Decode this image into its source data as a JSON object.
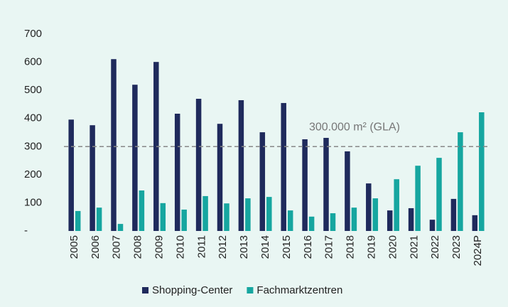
{
  "chart_data": {
    "type": "bar",
    "categories": [
      "2005",
      "2006",
      "2007",
      "2008",
      "2009",
      "2010",
      "2011",
      "2012",
      "2013",
      "2014",
      "2015",
      "2016",
      "2017",
      "2018",
      "2019",
      "2020",
      "2021",
      "2022",
      "2023",
      "2024P"
    ],
    "series": [
      {
        "name": "Shopping-Center",
        "color": "#1f2a5c",
        "values": [
          396,
          376,
          611,
          520,
          601,
          417,
          470,
          381,
          465,
          351,
          455,
          326,
          331,
          283,
          169,
          73,
          81,
          40,
          114,
          56
        ]
      },
      {
        "name": "Fachmarktzentren",
        "color": "#16a6a0",
        "values": [
          71,
          83,
          25,
          144,
          99,
          76,
          124,
          98,
          116,
          121,
          73,
          51,
          63,
          83,
          116,
          184,
          232,
          260,
          351,
          422
        ]
      }
    ],
    "ylim": [
      0,
      700
    ],
    "yticks": [
      {
        "value": 0,
        "label": "-"
      },
      100,
      200,
      300,
      400,
      500,
      600,
      700
    ],
    "reference_line": {
      "value": 300,
      "label": "300.000 m² (GLA)"
    },
    "legend": "bottom"
  }
}
